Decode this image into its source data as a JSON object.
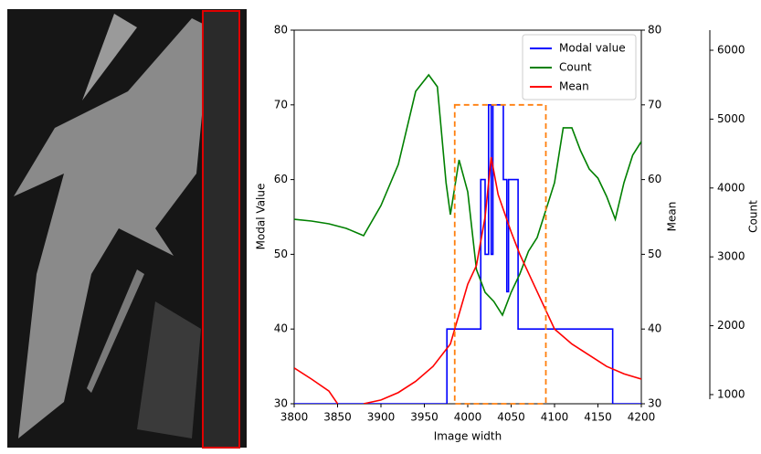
{
  "chart_data": {
    "type": "line",
    "xlabel": "Image width",
    "ylabel": "Modal Value",
    "y2label": "Mean",
    "y3label": "Count",
    "xlim": [
      3800,
      4200
    ],
    "xticks": [
      3800,
      3850,
      3900,
      3950,
      4000,
      4050,
      4100,
      4150,
      4200
    ],
    "ylim": [
      30,
      80
    ],
    "yticks": [
      30,
      40,
      50,
      60,
      70,
      80
    ],
    "y2lim": [
      30,
      80
    ],
    "y2ticks": [
      30,
      40,
      50,
      60,
      70,
      80
    ],
    "y3lim": [
      867,
      6292
    ],
    "y3ticks": [
      1000,
      2000,
      3000,
      4000,
      5000,
      6000
    ],
    "legend": "upper right",
    "highlight": {
      "color": "#ff7f0e",
      "xlim": [
        3985,
        4090
      ],
      "ylim": [
        30,
        70
      ]
    },
    "series": [
      {
        "name": "Modal value",
        "color": "#0000ff",
        "axis": "y",
        "x": [
          3800,
          3976,
          3976,
          4015,
          4015,
          4020,
          4020,
          4024,
          4024,
          4027,
          4027,
          4029,
          4029,
          4041,
          4041,
          4045,
          4045,
          4047,
          4047,
          4058,
          4058,
          4167,
          4167,
          4200
        ],
        "values": [
          30,
          30,
          40,
          40,
          60,
          60,
          50,
          50,
          70,
          70,
          50,
          50,
          70,
          70,
          60,
          60,
          45,
          45,
          60,
          60,
          40,
          40,
          30,
          30
        ]
      },
      {
        "name": "Count",
        "color": "#008000",
        "axis": "y3",
        "x": [
          3800,
          3820,
          3840,
          3860,
          3880,
          3900,
          3920,
          3940,
          3955,
          3965,
          3975,
          3980,
          3990,
          4000,
          4010,
          4020,
          4030,
          4040,
          4050,
          4060,
          4070,
          4080,
          4090,
          4100,
          4110,
          4120,
          4130,
          4140,
          4150,
          4160,
          4170,
          4180,
          4190,
          4200
        ],
        "values": [
          3546,
          3520,
          3480,
          3414,
          3308,
          3745,
          4342,
          5403,
          5642,
          5470,
          4077,
          3613,
          4408,
          3944,
          2817,
          2485,
          2353,
          2154,
          2485,
          2751,
          3082,
          3281,
          3679,
          4077,
          4873,
          4873,
          4541,
          4276,
          4143,
          3878,
          3546,
          4077,
          4475,
          4674
        ]
      },
      {
        "name": "Mean",
        "color": "#ff0000",
        "axis": "y2",
        "x": [
          3800,
          3820,
          3840,
          3850,
          3865,
          3880,
          3900,
          3920,
          3940,
          3960,
          3980,
          3990,
          4000,
          4010,
          4020,
          4027,
          4035,
          4050,
          4060,
          4080,
          4100,
          4120,
          4140,
          4160,
          4180,
          4200
        ],
        "values": [
          34.8,
          33.3,
          31.7,
          30,
          null,
          30,
          30.5,
          31.5,
          33,
          35,
          38,
          42,
          46,
          48.5,
          55,
          63,
          58,
          53,
          50,
          45,
          40,
          38,
          36.5,
          35,
          34,
          33.3
        ]
      }
    ]
  }
}
